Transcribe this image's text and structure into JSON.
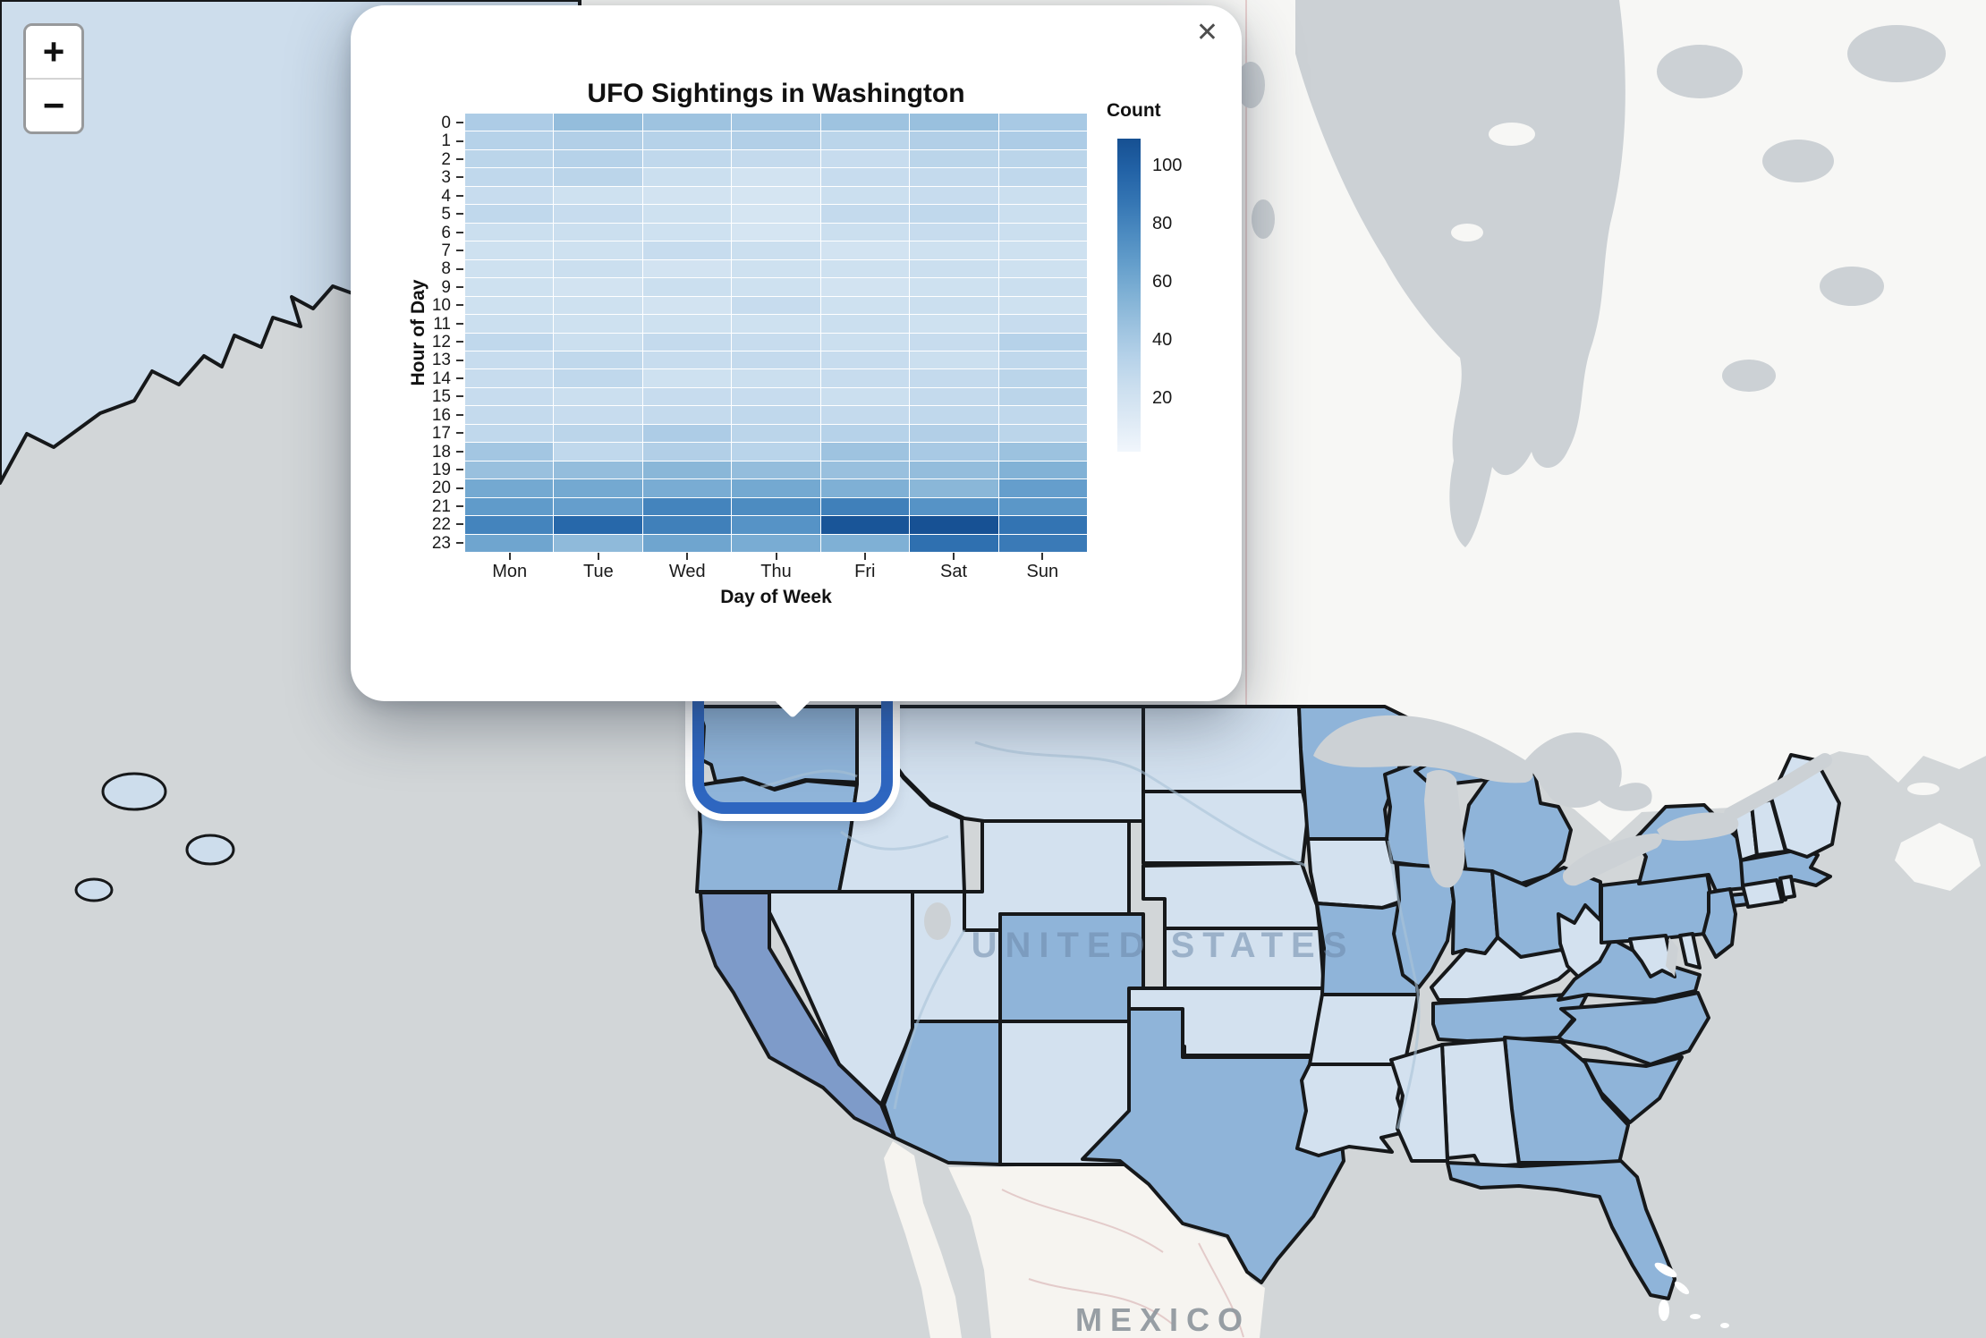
{
  "popup": {
    "close_label": "✕"
  },
  "chart_data": {
    "type": "heatmap",
    "title": "UFO Sightings in Washington",
    "xlabel": "Day of Week",
    "ylabel": "Hour of Day",
    "x_categories": [
      "Mon",
      "Tue",
      "Wed",
      "Thu",
      "Fri",
      "Sat",
      "Sun"
    ],
    "y_categories": [
      "0",
      "1",
      "2",
      "3",
      "4",
      "5",
      "6",
      "7",
      "8",
      "9",
      "10",
      "11",
      "12",
      "13",
      "14",
      "15",
      "16",
      "17",
      "18",
      "19",
      "20",
      "21",
      "22",
      "23"
    ],
    "values": [
      [
        38,
        48,
        44,
        42,
        44,
        46,
        40
      ],
      [
        34,
        36,
        34,
        36,
        32,
        36,
        38
      ],
      [
        32,
        34,
        30,
        28,
        26,
        32,
        32
      ],
      [
        30,
        32,
        24,
        20,
        26,
        28,
        30
      ],
      [
        26,
        22,
        20,
        18,
        24,
        26,
        24
      ],
      [
        30,
        26,
        22,
        18,
        28,
        30,
        24
      ],
      [
        24,
        24,
        22,
        18,
        24,
        26,
        24
      ],
      [
        22,
        22,
        26,
        24,
        20,
        22,
        22
      ],
      [
        22,
        24,
        20,
        22,
        22,
        24,
        22
      ],
      [
        22,
        20,
        24,
        22,
        20,
        22,
        24
      ],
      [
        22,
        22,
        20,
        26,
        22,
        24,
        22
      ],
      [
        24,
        22,
        22,
        22,
        24,
        22,
        26
      ],
      [
        30,
        24,
        28,
        26,
        24,
        26,
        34
      ],
      [
        26,
        30,
        26,
        28,
        26,
        24,
        30
      ],
      [
        26,
        30,
        22,
        24,
        26,
        28,
        32
      ],
      [
        26,
        24,
        26,
        26,
        24,
        28,
        32
      ],
      [
        28,
        26,
        28,
        30,
        28,
        30,
        30
      ],
      [
        30,
        32,
        38,
        32,
        34,
        36,
        32
      ],
      [
        42,
        30,
        36,
        33,
        44,
        40,
        45
      ],
      [
        46,
        48,
        52,
        48,
        46,
        48,
        55
      ],
      [
        60,
        60,
        58,
        60,
        56,
        52,
        66
      ],
      [
        68,
        66,
        80,
        76,
        82,
        72,
        70
      ],
      [
        80,
        95,
        82,
        72,
        106,
        108,
        88
      ],
      [
        62,
        50,
        62,
        58,
        56,
        90,
        85
      ]
    ],
    "legend": {
      "title": "Count",
      "ticks": [
        100,
        80,
        60,
        40,
        20
      ],
      "value_min": 2,
      "value_max": 109,
      "position": "right"
    },
    "colorscale": [
      {
        "v": 0,
        "c": "#f5f9fd"
      },
      {
        "v": 10,
        "c": "#e2ecf7"
      },
      {
        "v": 20,
        "c": "#d2e3f1"
      },
      {
        "v": 30,
        "c": "#c0d8ec"
      },
      {
        "v": 40,
        "c": "#a8c9e4"
      },
      {
        "v": 50,
        "c": "#8fbada"
      },
      {
        "v": 60,
        "c": "#74a9d1"
      },
      {
        "v": 70,
        "c": "#5b97c8"
      },
      {
        "v": 80,
        "c": "#4484bd"
      },
      {
        "v": 90,
        "c": "#2f70b0"
      },
      {
        "v": 100,
        "c": "#1f5fa4"
      },
      {
        "v": 110,
        "c": "#154e90"
      }
    ]
  },
  "map": {
    "zoom_in_label": "+",
    "zoom_out_label": "−",
    "labels": {
      "united_states": "UNITED STATES",
      "mexico": "MEXICO"
    },
    "selected_state": "Washington",
    "colors": {
      "ocean": "#d2d6d8",
      "canada_land": "#f7f7f5",
      "mexico_land": "#f6f4f0",
      "water_body": "#ccd1d5",
      "state_light": "#d3e1ef",
      "state_medium": "#8fb4d9",
      "state_dark": "#7e9bc9",
      "alaska": "#cdddec",
      "border": "#16181a",
      "selection_ring": "#2e66c0",
      "us_label": "#6e8aab",
      "mx_label": "#8d959c"
    },
    "states": [
      {
        "id": "AK",
        "name": "Alaska",
        "shade": "alaska"
      },
      {
        "id": "WA",
        "name": "Washington",
        "shade": "medium"
      },
      {
        "id": "OR",
        "name": "Oregon",
        "shade": "medium"
      },
      {
        "id": "CA",
        "name": "California",
        "shade": "dark"
      },
      {
        "id": "NV",
        "name": "Nevada",
        "shade": "light"
      },
      {
        "id": "ID",
        "name": "Idaho",
        "shade": "light"
      },
      {
        "id": "MT",
        "name": "Montana",
        "shade": "light"
      },
      {
        "id": "WY",
        "name": "Wyoming",
        "shade": "light"
      },
      {
        "id": "UT",
        "name": "Utah",
        "shade": "light"
      },
      {
        "id": "CO",
        "name": "Colorado",
        "shade": "medium"
      },
      {
        "id": "AZ",
        "name": "Arizona",
        "shade": "medium"
      },
      {
        "id": "NM",
        "name": "New Mexico",
        "shade": "light"
      },
      {
        "id": "ND",
        "name": "North Dakota",
        "shade": "light"
      },
      {
        "id": "SD",
        "name": "South Dakota",
        "shade": "light"
      },
      {
        "id": "NE",
        "name": "Nebraska",
        "shade": "light"
      },
      {
        "id": "KS",
        "name": "Kansas",
        "shade": "light"
      },
      {
        "id": "OK",
        "name": "Oklahoma",
        "shade": "light"
      },
      {
        "id": "TX",
        "name": "Texas",
        "shade": "medium"
      },
      {
        "id": "MN",
        "name": "Minnesota",
        "shade": "medium"
      },
      {
        "id": "IA",
        "name": "Iowa",
        "shade": "light"
      },
      {
        "id": "MO",
        "name": "Missouri",
        "shade": "medium"
      },
      {
        "id": "AR",
        "name": "Arkansas",
        "shade": "light"
      },
      {
        "id": "LA",
        "name": "Louisiana",
        "shade": "light"
      },
      {
        "id": "WI",
        "name": "Wisconsin",
        "shade": "medium"
      },
      {
        "id": "IL",
        "name": "Illinois",
        "shade": "medium"
      },
      {
        "id": "MI",
        "name": "Michigan",
        "shade": "medium"
      },
      {
        "id": "IN",
        "name": "Indiana",
        "shade": "medium"
      },
      {
        "id": "OH",
        "name": "Ohio",
        "shade": "medium"
      },
      {
        "id": "KY",
        "name": "Kentucky",
        "shade": "light"
      },
      {
        "id": "TN",
        "name": "Tennessee",
        "shade": "medium"
      },
      {
        "id": "MS",
        "name": "Mississippi",
        "shade": "light"
      },
      {
        "id": "AL",
        "name": "Alabama",
        "shade": "light"
      },
      {
        "id": "GA",
        "name": "Georgia",
        "shade": "medium"
      },
      {
        "id": "FL",
        "name": "Florida",
        "shade": "medium"
      },
      {
        "id": "SC",
        "name": "South Carolina",
        "shade": "medium"
      },
      {
        "id": "NC",
        "name": "North Carolina",
        "shade": "medium"
      },
      {
        "id": "VA",
        "name": "Virginia",
        "shade": "medium"
      },
      {
        "id": "WV",
        "name": "West Virginia",
        "shade": "light"
      },
      {
        "id": "MD",
        "name": "Maryland",
        "shade": "light"
      },
      {
        "id": "DE",
        "name": "Delaware",
        "shade": "light"
      },
      {
        "id": "PA",
        "name": "Pennsylvania",
        "shade": "medium"
      },
      {
        "id": "NY",
        "name": "New York",
        "shade": "medium"
      },
      {
        "id": "NJ",
        "name": "New Jersey",
        "shade": "medium"
      },
      {
        "id": "CT",
        "name": "Connecticut",
        "shade": "light"
      },
      {
        "id": "RI",
        "name": "Rhode Island",
        "shade": "light"
      },
      {
        "id": "MA",
        "name": "Massachusetts",
        "shade": "medium"
      },
      {
        "id": "VT",
        "name": "Vermont",
        "shade": "light"
      },
      {
        "id": "NH",
        "name": "New Hampshire",
        "shade": "light"
      },
      {
        "id": "ME",
        "name": "Maine",
        "shade": "light"
      }
    ]
  }
}
